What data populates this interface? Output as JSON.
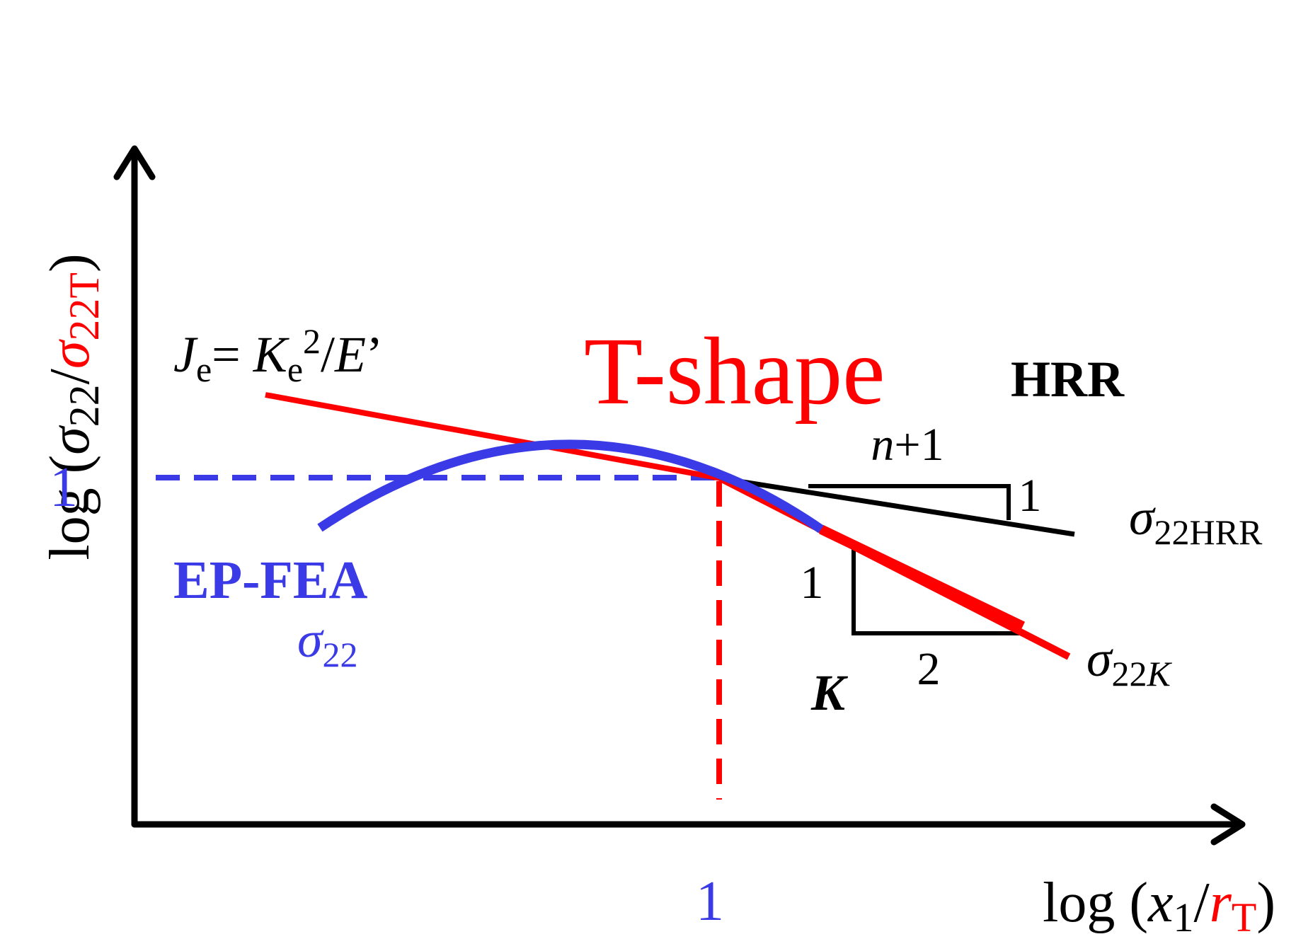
{
  "colors": {
    "black": "#000000",
    "red": "#ff0000",
    "blue": "#3a3ae6"
  },
  "y_axis": {
    "prefix": "log (",
    "sigma": "σ",
    "sub_black": "22",
    "slash": "/",
    "sub_red": "22T",
    "suffix": ")"
  },
  "x_axis": {
    "prefix": "log (",
    "x": "x",
    "x_sub": "1",
    "slash": "/",
    "r": "r",
    "r_sub": "T",
    "suffix": ")"
  },
  "ticks": {
    "y_one": "1",
    "x_one": "1"
  },
  "je_label": {
    "J": "J",
    "e1": "e",
    "eq": "= ",
    "K": "K",
    "e2": "e",
    "sup": "2",
    "slash": "/",
    "E": "E",
    "prime": "’"
  },
  "t_shape": "T-shape",
  "hrr": "HRR",
  "hrr_triangle": {
    "top": "n",
    "top_rest": "+1",
    "side": "1"
  },
  "sigma_hrr": {
    "sigma": "σ",
    "sub": "22HRR"
  },
  "k_triangle": {
    "side": "1",
    "bottom": "2"
  },
  "k_label": "K",
  "sigma_k": {
    "sigma": "σ",
    "sub": "22",
    "sub_k": "K"
  },
  "ep_fea": {
    "label": "EP-FEA",
    "sigma": "σ",
    "sub": "22"
  }
}
